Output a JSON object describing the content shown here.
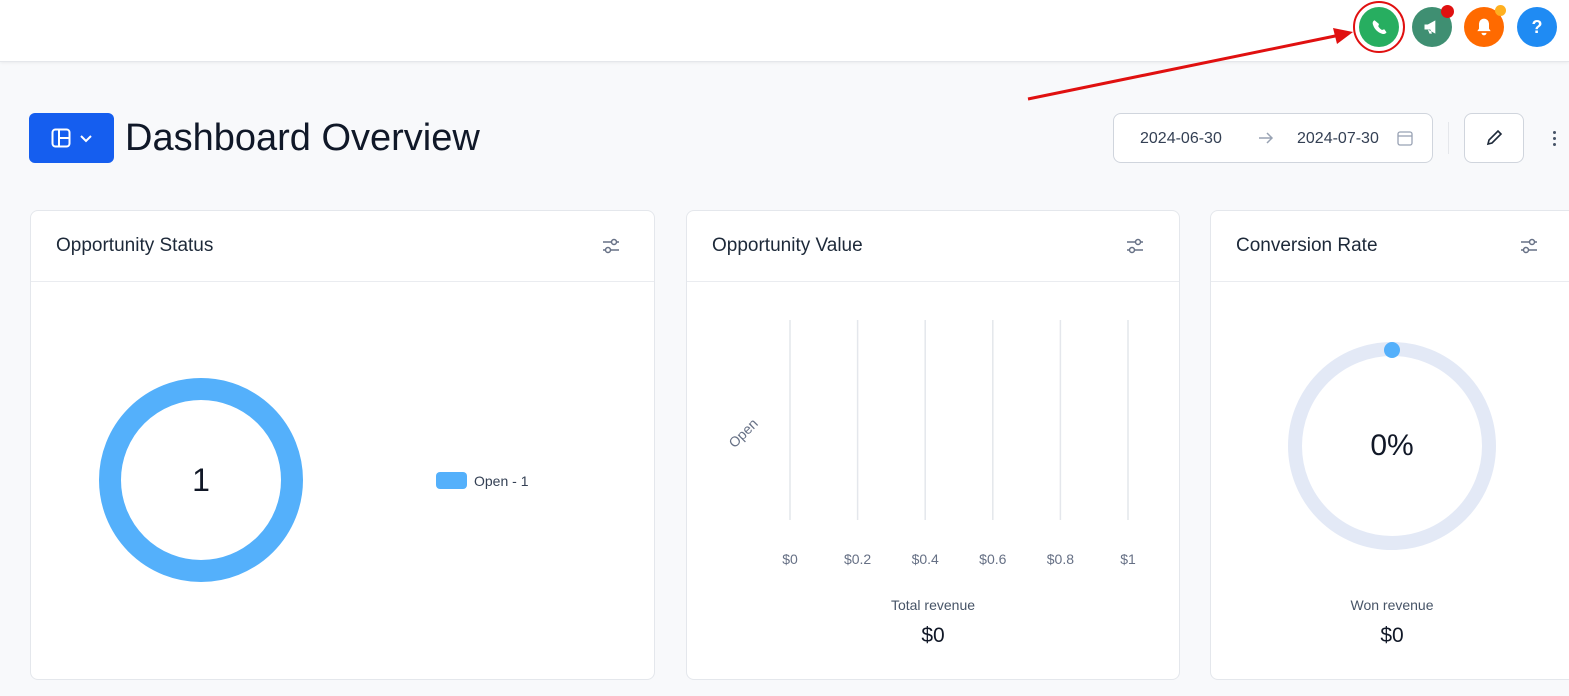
{
  "topbar": {
    "buttons": [
      {
        "name": "phone-icon",
        "color": "#27ae60"
      },
      {
        "name": "megaphone-icon",
        "color": "#3f8f72",
        "badge": "#e01010"
      },
      {
        "name": "bell-icon",
        "color": "#ff6a00",
        "badge": "#ffb020"
      },
      {
        "name": "help-icon",
        "label": "?",
        "color": "#1f8bf3"
      }
    ]
  },
  "header": {
    "title": "Dashboard Overview",
    "date_start": "2024-06-30",
    "date_end": "2024-07-30"
  },
  "cards": {
    "status": {
      "title": "Opportunity Status",
      "center_value": "1",
      "legend": "Open - 1"
    },
    "value": {
      "title": "Opportunity Value",
      "category": "Open",
      "ticks": [
        "$0",
        "$0.2",
        "$0.4",
        "$0.6",
        "$0.8",
        "$1"
      ],
      "footer_label": "Total revenue",
      "footer_value": "$0"
    },
    "conversion": {
      "title": "Conversion Rate",
      "center_value": "0%",
      "footer_label": "Won revenue",
      "footer_value": "$0"
    }
  },
  "colors": {
    "accent": "#155eef",
    "series": "#54b0fb",
    "track": "#e3e9f6",
    "annotation": "#e01010"
  },
  "chart_data": [
    {
      "type": "pie",
      "categories": [
        "Open"
      ],
      "values": [
        1
      ],
      "donut": true
    },
    {
      "type": "bar",
      "orientation": "horizontal",
      "categories": [
        "Open"
      ],
      "values": [
        0
      ],
      "xlim": [
        0,
        1
      ],
      "grid": true
    },
    {
      "type": "gauge",
      "value_percent": 0
    }
  ]
}
